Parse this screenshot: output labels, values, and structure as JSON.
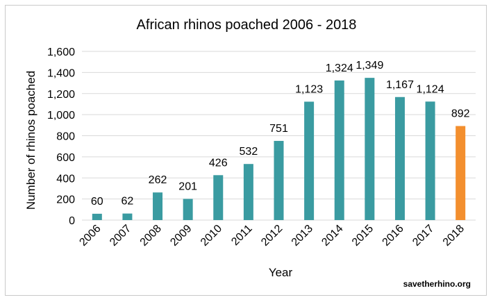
{
  "chart_data": {
    "type": "bar",
    "title": "African rhinos poached 2006 - 2018",
    "xlabel": "Year",
    "ylabel": "Number of rhinos poached",
    "categories": [
      "2006",
      "2007",
      "2008",
      "2009",
      "2010",
      "2011",
      "2012",
      "2013",
      "2014",
      "2015",
      "2016",
      "2017",
      "2018"
    ],
    "values": [
      60,
      62,
      262,
      201,
      426,
      532,
      751,
      1123,
      1324,
      1349,
      1167,
      1124,
      892
    ],
    "data_labels": [
      "60",
      "62",
      "262",
      "201",
      "426",
      "532",
      "751",
      "1,123",
      "1,324",
      "1,349",
      "1,167",
      "1,124",
      "892"
    ],
    "ylim": [
      0,
      1600
    ],
    "yticks": [
      0,
      200,
      400,
      600,
      800,
      1000,
      1200,
      1400,
      1600
    ],
    "ytick_labels": [
      "0",
      "200",
      "400",
      "600",
      "800",
      "1,000",
      "1,200",
      "1,400",
      "1,600"
    ],
    "grid": true,
    "colors": {
      "default": "#3a9ba1",
      "highlight": "#f38f2e",
      "grid": "#d9d9d9"
    },
    "highlight_category": "2018"
  },
  "credit": "savetherhino.org"
}
